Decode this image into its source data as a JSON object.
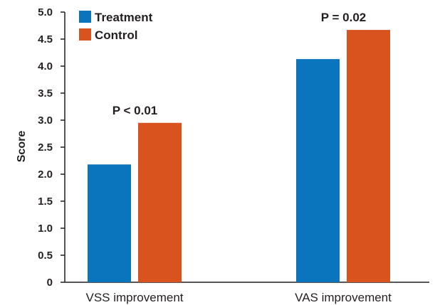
{
  "chart_data": {
    "type": "bar",
    "categories": [
      "VSS improvement",
      "VAS improvement"
    ],
    "series": [
      {
        "name": "Treatment",
        "values": [
          2.18,
          4.13
        ],
        "color": "#0a74bc"
      },
      {
        "name": "Control",
        "values": [
          2.95,
          4.67
        ],
        "color": "#d9531e"
      }
    ],
    "ylabel": "Score",
    "xlabel": "",
    "ylim": [
      0,
      5.0
    ],
    "yticks": [
      "0",
      "0.5",
      "1.0",
      "1.5",
      "2.0",
      "2.5",
      "3.0",
      "3.5",
      "4.0",
      "4.5",
      "5.0"
    ],
    "annotations": [
      "P < 0.01",
      "P = 0.02"
    ],
    "grid": false,
    "legend_position": "top-left"
  }
}
